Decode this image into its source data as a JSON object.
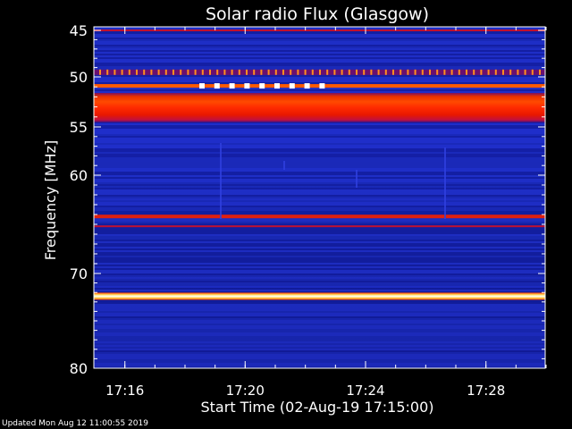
{
  "chart_data": {
    "type": "heatmap",
    "title": "Solar radio Flux (Glasgow)",
    "xlabel": "Start Time (02-Aug-19 17:15:00)",
    "ylabel": "Frequency [MHz]",
    "x_range_minutes": [
      17.25,
      17.5
    ],
    "x_ticks": [
      "17:16",
      "17:20",
      "17:24",
      "17:28"
    ],
    "x_tick_values": [
      17.2667,
      17.3333,
      17.4,
      17.4667
    ],
    "y_range_mhz": [
      45,
      80
    ],
    "y_ticks": [
      45,
      50,
      55,
      60,
      70,
      80
    ],
    "y_scale": "nonlinear",
    "colormap": "blue-red-yellow-white",
    "bands": [
      {
        "freq": 45,
        "level": "moderate"
      },
      {
        "freq": 49.5,
        "level": "high-pulsed"
      },
      {
        "freq": 50.9,
        "level": "saturated-pulsed"
      },
      {
        "freq": 52.5,
        "level": "high"
      },
      {
        "freq": 54,
        "level": "high"
      },
      {
        "freq": 64.2,
        "level": "high"
      },
      {
        "freq": 65.2,
        "level": "moderate"
      },
      {
        "freq": 72.4,
        "level": "saturated"
      }
    ]
  },
  "footer": "Updated Mon Aug 12 11:00:55 2019"
}
